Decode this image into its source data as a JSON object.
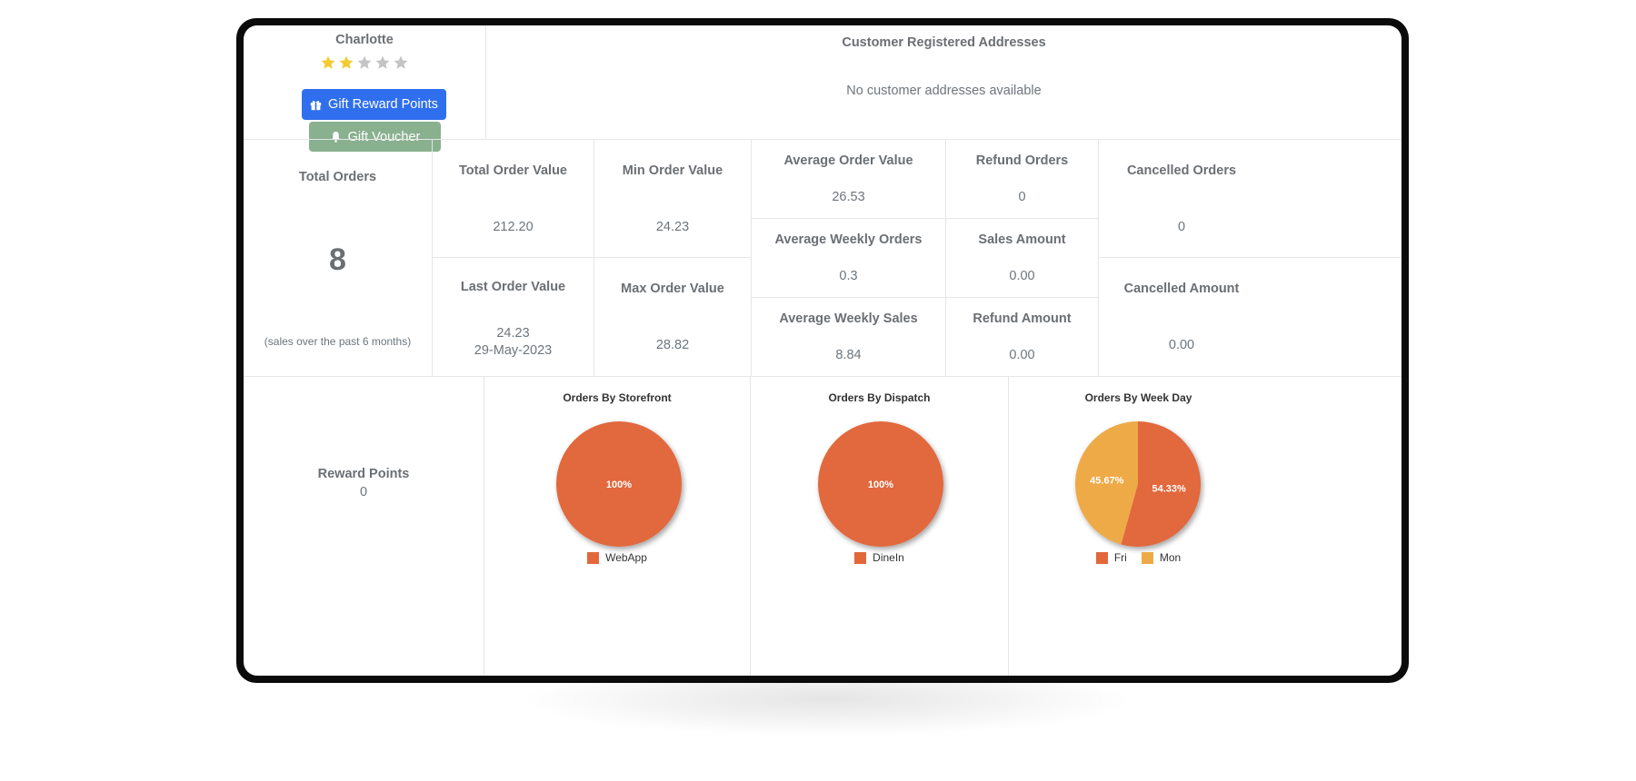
{
  "profile": {
    "name": "Charlotte",
    "rating": 2,
    "rating_max": 5,
    "gift_reward_button": "Gift Reward Points",
    "gift_voucher_button": "Gift Voucher"
  },
  "addresses": {
    "title": "Customer Registered Addresses",
    "empty_message": "No customer addresses available"
  },
  "stats": {
    "total_orders": {
      "label": "Total Orders",
      "value": "8",
      "note": "(sales over the past 6 months)"
    },
    "total_order_value": {
      "label": "Total Order Value",
      "value": "212.20"
    },
    "min_order_value": {
      "label": "Min Order Value",
      "value": "24.23"
    },
    "last_order_value": {
      "label": "Last Order Value",
      "value": "24.23",
      "date": "29-May-2023"
    },
    "max_order_value": {
      "label": "Max Order Value",
      "value": "28.82"
    },
    "average_order_value": {
      "label": "Average Order Value",
      "value": "26.53"
    },
    "refund_orders": {
      "label": "Refund Orders",
      "value": "0"
    },
    "average_weekly_orders": {
      "label": "Average Weekly Orders",
      "value": "0.3"
    },
    "sales_amount": {
      "label": "Sales Amount",
      "value": "0.00"
    },
    "average_weekly_sales": {
      "label": "Average Weekly Sales",
      "value": "8.84"
    },
    "refund_amount": {
      "label": "Refund Amount",
      "value": "0.00"
    },
    "cancelled_orders": {
      "label": "Cancelled Orders",
      "value": "0"
    },
    "cancelled_amount": {
      "label": "Cancelled Amount",
      "value": "0.00"
    }
  },
  "rewards": {
    "label": "Reward Points",
    "value": "0"
  },
  "colors": {
    "orange": "#e2683c",
    "yellow": "#eeaa47",
    "primary": "#2f6fee",
    "success_muted": "#89b08f",
    "star_on": "#f3cb2e",
    "star_off": "#c4c4c4"
  },
  "icons": {
    "gift": "gift-icon",
    "voucher": "bell-icon",
    "star": "star-icon"
  },
  "chart_data": [
    {
      "type": "pie",
      "title": "Orders By Storefront",
      "categories": [
        "WebApp"
      ],
      "values": [
        100
      ],
      "labels": [
        "100%"
      ],
      "colors": [
        "#e2683c"
      ],
      "legend": "bottom"
    },
    {
      "type": "pie",
      "title": "Orders By Dispatch",
      "categories": [
        "DineIn"
      ],
      "values": [
        100
      ],
      "labels": [
        "100%"
      ],
      "colors": [
        "#e2683c"
      ],
      "legend": "bottom"
    },
    {
      "type": "pie",
      "title": "Orders By Week Day",
      "categories": [
        "Fri",
        "Mon"
      ],
      "values": [
        54.33,
        45.67
      ],
      "labels": [
        "54.33%",
        "45.67%"
      ],
      "colors": [
        "#e2683c",
        "#eeaa47"
      ],
      "legend": "bottom"
    }
  ]
}
